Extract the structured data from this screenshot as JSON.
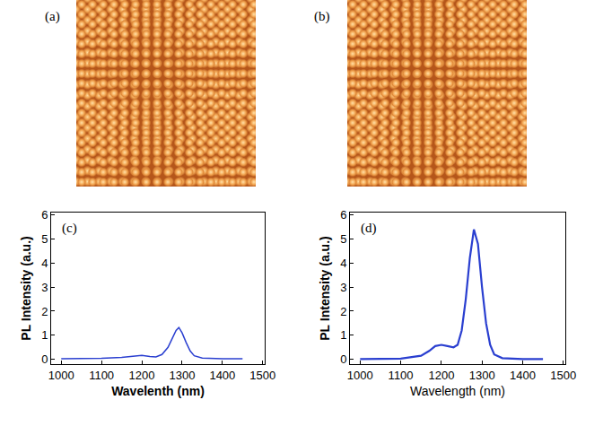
{
  "images": [
    {
      "label": "(a)"
    },
    {
      "label": "(b)"
    }
  ],
  "chart_data": [
    {
      "type": "line",
      "label": "(c)",
      "xlabel": "Wavelenth (nm)",
      "ylabel": "PL Intensity (a.u.)",
      "color": "#2a3fd0",
      "x": [
        1000,
        1050,
        1100,
        1150,
        1180,
        1200,
        1220,
        1235,
        1250,
        1265,
        1275,
        1285,
        1292,
        1300,
        1310,
        1320,
        1330,
        1350,
        1400,
        1450
      ],
      "values": [
        0.02,
        0.03,
        0.04,
        0.08,
        0.13,
        0.16,
        0.12,
        0.1,
        0.2,
        0.5,
        0.85,
        1.2,
        1.32,
        1.1,
        0.7,
        0.35,
        0.15,
        0.05,
        0.02,
        0.02
      ],
      "xlim": [
        975,
        1505
      ],
      "ylim": [
        -0.2,
        6.1
      ],
      "xticks": [
        1000,
        1100,
        1200,
        1300,
        1400,
        1500
      ],
      "yticks": [
        0,
        1,
        2,
        3,
        4,
        5,
        6
      ]
    },
    {
      "type": "line",
      "label": "(d)",
      "xlabel": "Wavelength (nm)",
      "ylabel": "PL Intensity (a.u.)",
      "color": "#2a3fd0",
      "x": [
        1000,
        1100,
        1150,
        1170,
        1185,
        1200,
        1215,
        1230,
        1240,
        1250,
        1260,
        1270,
        1280,
        1290,
        1300,
        1310,
        1320,
        1330,
        1350,
        1400,
        1450
      ],
      "values": [
        0.01,
        0.03,
        0.15,
        0.35,
        0.55,
        0.6,
        0.55,
        0.5,
        0.6,
        1.2,
        2.5,
        4.2,
        5.4,
        4.8,
        3.0,
        1.5,
        0.6,
        0.2,
        0.05,
        0.01,
        0.01
      ],
      "xlim": [
        975,
        1505
      ],
      "ylim": [
        -0.2,
        6.1
      ],
      "xticks": [
        1000,
        1100,
        1200,
        1300,
        1400,
        1500
      ],
      "yticks": [
        0,
        1,
        2,
        3,
        4,
        5,
        6
      ]
    }
  ]
}
